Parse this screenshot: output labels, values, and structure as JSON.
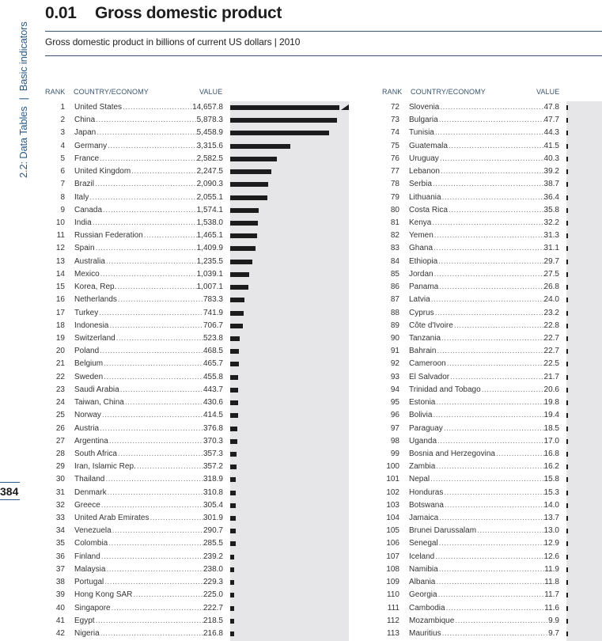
{
  "sidebar": {
    "section": "2.2: Data Tables",
    "subsection": "Basic indicators",
    "page_number": "384"
  },
  "header": {
    "number": "0.01",
    "title": "Gross domestic product",
    "subtitle": "Gross domestic product in billions of current US dollars | 2010"
  },
  "columns": {
    "rank": "RANK",
    "country": "COUNTRY/ECONOMY",
    "value": "VALUE"
  },
  "colors": {
    "bar": "#1c1c1c",
    "bar_background": "#e6e6e8",
    "accent": "#2d5a86"
  },
  "left_table": [
    [
      "1",
      "United States",
      "14,657.8",
      14657.8
    ],
    [
      "2",
      "China",
      "5,878.3",
      5878.3
    ],
    [
      "3",
      "Japan",
      "5,458.9",
      5458.9
    ],
    [
      "4",
      "Germany",
      "3,315.6",
      3315.6
    ],
    [
      "5",
      "France",
      "2,582.5",
      2582.5
    ],
    [
      "6",
      "United Kingdom",
      "2,247.5",
      2247.5
    ],
    [
      "7",
      "Brazil",
      "2,090.3",
      2090.3
    ],
    [
      "8",
      "Italy",
      "2,055.1",
      2055.1
    ],
    [
      "9",
      "Canada",
      "1,574.1",
      1574.1
    ],
    [
      "10",
      "India",
      "1,538.0",
      1538.0
    ],
    [
      "11",
      "Russian Federation",
      "1,465.1",
      1465.1
    ],
    [
      "12",
      "Spain",
      "1,409.9",
      1409.9
    ],
    [
      "13",
      "Australia",
      "1,235.5",
      1235.5
    ],
    [
      "14",
      "Mexico",
      "1,039.1",
      1039.1
    ],
    [
      "15",
      "Korea, Rep.",
      "1,007.1",
      1007.1
    ],
    [
      "16",
      "Netherlands",
      "783.3",
      783.3
    ],
    [
      "17",
      "Turkey",
      "741.9",
      741.9
    ],
    [
      "18",
      "Indonesia",
      "706.7",
      706.7
    ],
    [
      "19",
      "Switzerland",
      "523.8",
      523.8
    ],
    [
      "20",
      "Poland",
      "468.5",
      468.5
    ],
    [
      "21",
      "Belgium",
      "465.7",
      465.7
    ],
    [
      "22",
      "Sweden",
      "455.8",
      455.8
    ],
    [
      "23",
      "Saudi Arabia",
      "443.7",
      443.7
    ],
    [
      "24",
      "Taiwan, China",
      "430.6",
      430.6
    ],
    [
      "25",
      "Norway",
      "414.5",
      414.5
    ],
    [
      "26",
      "Austria",
      "376.8",
      376.8
    ],
    [
      "27",
      "Argentina",
      "370.3",
      370.3
    ],
    [
      "28",
      "South Africa",
      "357.3",
      357.3
    ],
    [
      "29",
      "Iran, Islamic Rep.",
      "357.2",
      357.2
    ],
    [
      "30",
      "Thailand",
      "318.9",
      318.9
    ],
    [
      "31",
      "Denmark",
      "310.8",
      310.8
    ],
    [
      "32",
      "Greece",
      "305.4",
      305.4
    ],
    [
      "33",
      "United Arab Emirates",
      "301.9",
      301.9
    ],
    [
      "34",
      "Venezuela",
      "290.7",
      290.7
    ],
    [
      "35",
      "Colombia",
      "285.5",
      285.5
    ],
    [
      "36",
      "Finland",
      "239.2",
      239.2
    ],
    [
      "37",
      "Malaysia",
      "238.0",
      238.0
    ],
    [
      "38",
      "Portugal",
      "229.3",
      229.3
    ],
    [
      "39",
      "Hong Kong SAR",
      "225.0",
      225.0
    ],
    [
      "40",
      "Singapore",
      "222.7",
      222.7
    ],
    [
      "41",
      "Egypt",
      "218.5",
      218.5
    ],
    [
      "42",
      "Nigeria",
      "216.8",
      216.8
    ]
  ],
  "right_table": [
    [
      "72",
      "Slovenia",
      "47.8",
      47.8
    ],
    [
      "73",
      "Bulgaria",
      "47.7",
      47.7
    ],
    [
      "74",
      "Tunisia",
      "44.3",
      44.3
    ],
    [
      "75",
      "Guatemala",
      "41.5",
      41.5
    ],
    [
      "76",
      "Uruguay",
      "40.3",
      40.3
    ],
    [
      "77",
      "Lebanon",
      "39.2",
      39.2
    ],
    [
      "78",
      "Serbia",
      "38.7",
      38.7
    ],
    [
      "79",
      "Lithuania",
      "36.4",
      36.4
    ],
    [
      "80",
      "Costa Rica",
      "35.8",
      35.8
    ],
    [
      "81",
      "Kenya",
      "32.2",
      32.2
    ],
    [
      "82",
      "Yemen",
      "31.3",
      31.3
    ],
    [
      "83",
      "Ghana",
      "31.1",
      31.1
    ],
    [
      "84",
      "Ethiopia",
      "29.7",
      29.7
    ],
    [
      "85",
      "Jordan",
      "27.5",
      27.5
    ],
    [
      "86",
      "Panama",
      "26.8",
      26.8
    ],
    [
      "87",
      "Latvia",
      "24.0",
      24.0
    ],
    [
      "88",
      "Cyprus",
      "23.2",
      23.2
    ],
    [
      "89",
      "Côte d'Ivoire",
      "22.8",
      22.8
    ],
    [
      "90",
      "Tanzania",
      "22.7",
      22.7
    ],
    [
      "91",
      "Bahrain",
      "22.7",
      22.7
    ],
    [
      "92",
      "Cameroon",
      "22.5",
      22.5
    ],
    [
      "93",
      "El Salvador",
      "21.7",
      21.7
    ],
    [
      "94",
      "Trinidad and Tobago",
      "20.6",
      20.6
    ],
    [
      "95",
      "Estonia",
      "19.8",
      19.8
    ],
    [
      "96",
      "Bolivia",
      "19.4",
      19.4
    ],
    [
      "97",
      "Paraguay",
      "18.5",
      18.5
    ],
    [
      "98",
      "Uganda",
      "17.0",
      17.0
    ],
    [
      "99",
      "Bosnia and Herzegovina",
      "16.8",
      16.8
    ],
    [
      "100",
      "Zambia",
      "16.2",
      16.2
    ],
    [
      "101",
      "Nepal",
      "15.8",
      15.8
    ],
    [
      "102",
      "Honduras",
      "15.3",
      15.3
    ],
    [
      "103",
      "Botswana",
      "14.0",
      14.0
    ],
    [
      "104",
      "Jamaica",
      "13.7",
      13.7
    ],
    [
      "105",
      "Brunei Darussalam",
      "13.0",
      13.0
    ],
    [
      "106",
      "Senegal",
      "12.9",
      12.9
    ],
    [
      "107",
      "Iceland",
      "12.6",
      12.6
    ],
    [
      "108",
      "Namibia",
      "11.9",
      11.9
    ],
    [
      "109",
      "Albania",
      "11.8",
      11.8
    ],
    [
      "110",
      "Georgia",
      "11.7",
      11.7
    ],
    [
      "111",
      "Cambodia",
      "11.6",
      11.6
    ],
    [
      "112",
      "Mozambique",
      "9.9",
      9.9
    ],
    [
      "113",
      "Mauritius",
      "9.7",
      9.7
    ]
  ]
}
